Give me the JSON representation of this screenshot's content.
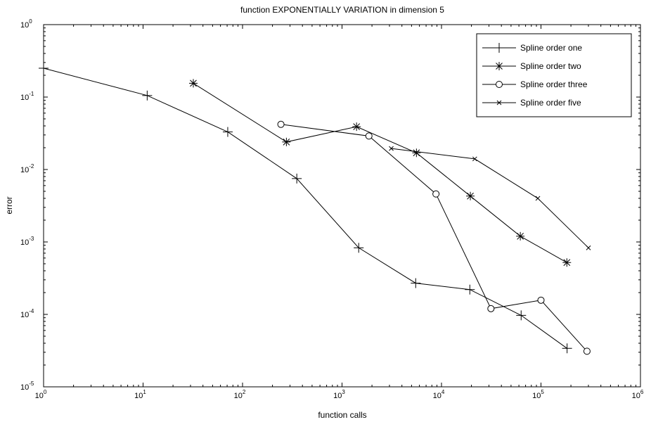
{
  "chart_data": {
    "type": "line",
    "title": "function EXPONENTIALLY VARIATION in dimension 5",
    "xlabel": "function calls",
    "ylabel": "error",
    "xscale": "log",
    "yscale": "log",
    "xlim": [
      1,
      1000000
    ],
    "ylim": [
      1e-05,
      1
    ],
    "x_ticks": [
      {
        "base": "10",
        "exp": "0",
        "value": 1
      },
      {
        "base": "10",
        "exp": "1",
        "value": 10
      },
      {
        "base": "10",
        "exp": "2",
        "value": 100
      },
      {
        "base": "10",
        "exp": "3",
        "value": 1000
      },
      {
        "base": "10",
        "exp": "4",
        "value": 10000
      },
      {
        "base": "10",
        "exp": "5",
        "value": 100000
      },
      {
        "base": "10",
        "exp": "6",
        "value": 1000000
      }
    ],
    "y_ticks": [
      {
        "base": "10",
        "exp": "0",
        "value": 1
      },
      {
        "base": "10",
        "exp": "-1",
        "value": 0.1
      },
      {
        "base": "10",
        "exp": "-2",
        "value": 0.01
      },
      {
        "base": "10",
        "exp": "-3",
        "value": 0.001
      },
      {
        "base": "10",
        "exp": "-4",
        "value": 0.0001
      },
      {
        "base": "10",
        "exp": "-5",
        "value": 1e-05
      }
    ],
    "grid": false,
    "legend_position": "top-right",
    "series": [
      {
        "name": "Spline order one",
        "marker": "plus",
        "x": [
          1,
          11,
          71,
          351,
          1471,
          5503,
          19263,
          63167,
          183000
        ],
        "y": [
          0.25,
          0.105,
          0.033,
          0.0075,
          0.00083,
          0.00027,
          0.00022,
          9.7e-05,
          3.4e-05
        ]
      },
      {
        "name": "Spline order two",
        "marker": "asterisk",
        "x": [
          32,
          276,
          1400,
          5600,
          19500,
          62000,
          182000
        ],
        "y": [
          0.155,
          0.024,
          0.039,
          0.017,
          0.0043,
          0.0012,
          0.00052
        ]
      },
      {
        "name": "Spline order three",
        "marker": "circle",
        "x": [
          243,
          1863,
          8800,
          31400,
          100000,
          290000
        ],
        "y": [
          0.042,
          0.029,
          0.0046,
          0.00012,
          0.000157,
          3.1e-05
        ]
      },
      {
        "name": "Spline order five",
        "marker": "cross",
        "x": [
          3125,
          21600,
          93000,
          300000
        ],
        "y": [
          0.0195,
          0.014,
          0.004,
          0.00083
        ]
      }
    ]
  }
}
